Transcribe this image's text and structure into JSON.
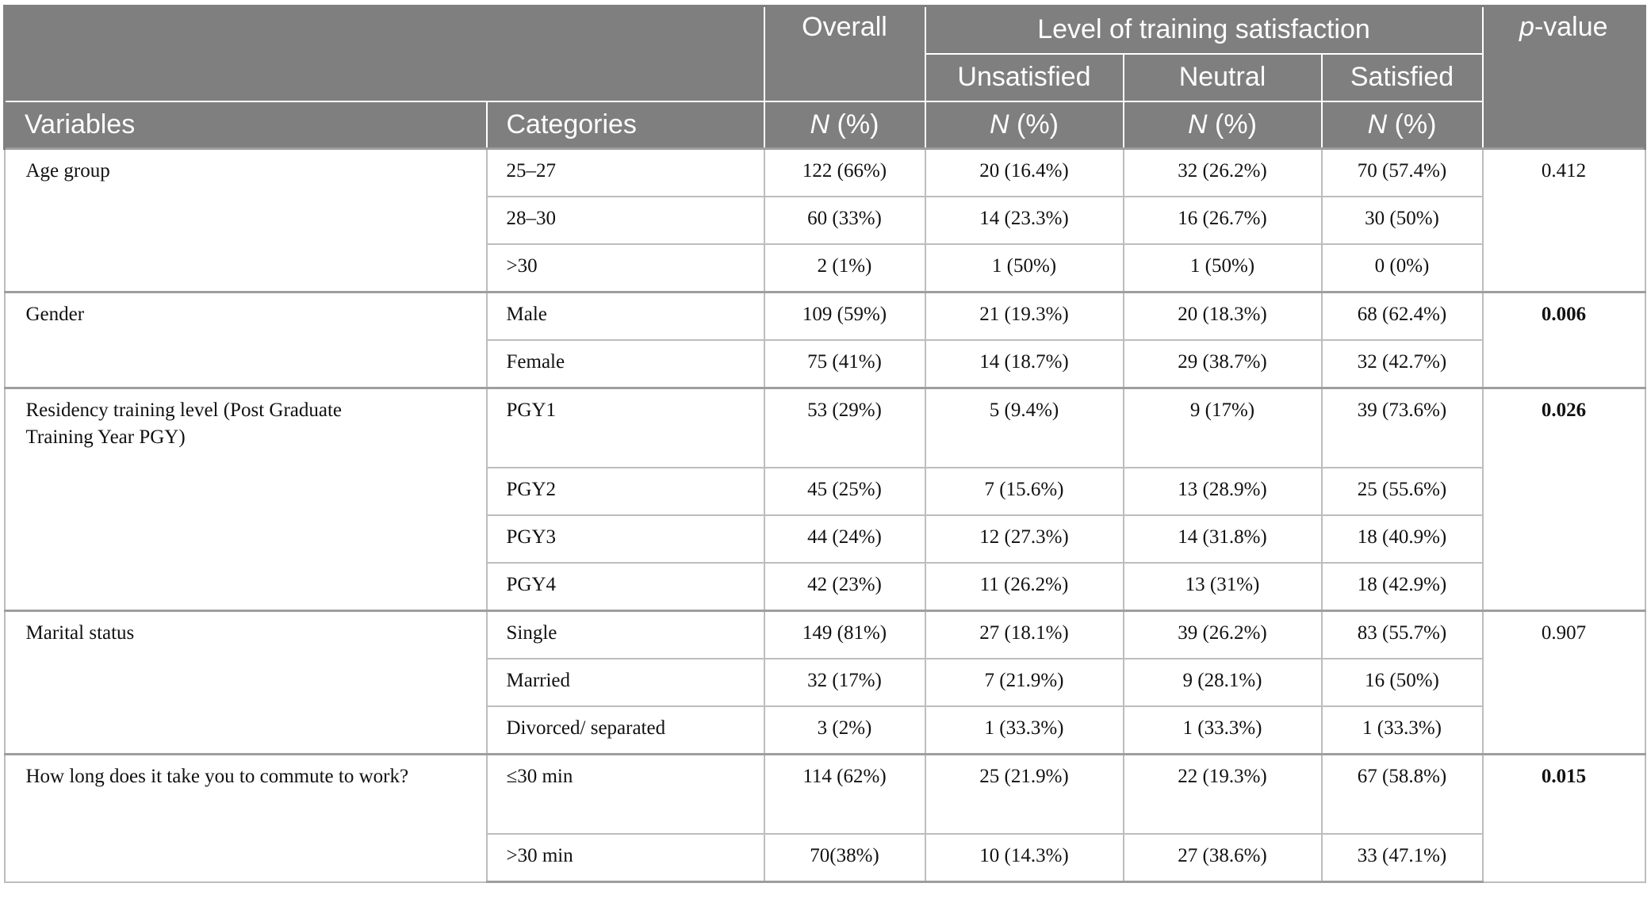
{
  "header": {
    "overall": "Overall",
    "level_group": "Level of training satisfaction",
    "unsatisfied": "Unsatisfied",
    "neutral": "Neutral",
    "satisfied": "Satisfied",
    "p_value_italic": "p",
    "p_value_rest": "-value",
    "variables": "Variables",
    "categories": "Categories",
    "n_italic": "N",
    "n_rest": " (%)"
  },
  "groups": [
    {
      "variable": "Age group",
      "p_value": "0.412",
      "bold": false,
      "rows": [
        {
          "category": "25–27",
          "overall": "122 (66%)",
          "unsatisfied": "20 (16.4%)",
          "neutral": "32 (26.2%)",
          "satisfied": "70 (57.4%)"
        },
        {
          "category": "28–30",
          "overall": "60 (33%)",
          "unsatisfied": "14 (23.3%)",
          "neutral": "16 (26.7%)",
          "satisfied": "30 (50%)"
        },
        {
          "category": ">30",
          "overall": "2 (1%)",
          "unsatisfied": "1 (50%)",
          "neutral": "1 (50%)",
          "satisfied": "0 (0%)"
        }
      ]
    },
    {
      "variable": "Gender",
      "p_value": "0.006",
      "bold": true,
      "rows": [
        {
          "category": "Male",
          "overall": "109 (59%)",
          "unsatisfied": "21 (19.3%)",
          "neutral": "20 (18.3%)",
          "satisfied": "68 (62.4%)"
        },
        {
          "category": "Female",
          "overall": "75 (41%)",
          "unsatisfied": "14 (18.7%)",
          "neutral": "29 (38.7%)",
          "satisfied": "32 (42.7%)"
        }
      ]
    },
    {
      "variable": "Residency training level (Post Graduate Training Year PGY)",
      "p_value": "0.026",
      "bold": true,
      "rows": [
        {
          "category": "PGY1",
          "overall": "53 (29%)",
          "unsatisfied": "5 (9.4%)",
          "neutral": "9 (17%)",
          "satisfied": "39 (73.6%)"
        },
        {
          "category": "PGY2",
          "overall": "45 (25%)",
          "unsatisfied": "7 (15.6%)",
          "neutral": "13 (28.9%)",
          "satisfied": "25 (55.6%)"
        },
        {
          "category": "PGY3",
          "overall": "44 (24%)",
          "unsatisfied": "12 (27.3%)",
          "neutral": "14 (31.8%)",
          "satisfied": "18 (40.9%)"
        },
        {
          "category": "PGY4",
          "overall": "42 (23%)",
          "unsatisfied": "11 (26.2%)",
          "neutral": "13 (31%)",
          "satisfied": "18 (42.9%)"
        }
      ]
    },
    {
      "variable": "Marital status",
      "p_value": "0.907",
      "bold": false,
      "rows": [
        {
          "category": "Single",
          "overall": "149 (81%)",
          "unsatisfied": "27 (18.1%)",
          "neutral": "39 (26.2%)",
          "satisfied": "83 (55.7%)"
        },
        {
          "category": "Married",
          "overall": "32 (17%)",
          "unsatisfied": "7 (21.9%)",
          "neutral": "9 (28.1%)",
          "satisfied": "16 (50%)"
        },
        {
          "category": "Divorced/ separated",
          "overall": "3 (2%)",
          "unsatisfied": "1 (33.3%)",
          "neutral": "1 (33.3%)",
          "satisfied": "1 (33.3%)"
        }
      ]
    },
    {
      "variable": "How long does it take you to commute to work?",
      "p_value": "0.015",
      "bold": true,
      "rows": [
        {
          "category": "≤30 min",
          "overall": "114 (62%)",
          "unsatisfied": "25 (21.9%)",
          "neutral": "22 (19.3%)",
          "satisfied": "67 (58.8%)"
        },
        {
          "category": ">30 min",
          "overall": "70(38%)",
          "unsatisfied": "10 (14.3%)",
          "neutral": "27 (38.6%)",
          "satisfied": "33 (47.1%)"
        }
      ]
    }
  ]
}
